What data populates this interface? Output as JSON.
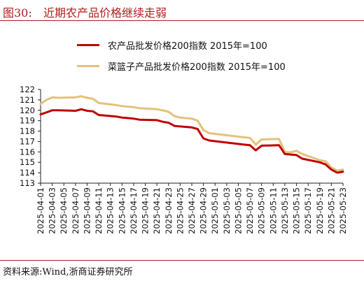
{
  "header": {
    "figure_label": "图30:",
    "title": "近期农产品价格继续走弱"
  },
  "source_note": "资料来源:Wind,浙商证券研究所",
  "colors": {
    "accent": "#b01c1c",
    "series_1": "#c00000",
    "series_2": "#e3c27a"
  },
  "chart_data": {
    "type": "line",
    "x": [
      "2025-04-01",
      "2025-04-02",
      "2025-04-03",
      "2025-04-04",
      "2025-04-07",
      "2025-04-08",
      "2025-04-09",
      "2025-04-10",
      "2025-04-11",
      "2025-04-14",
      "2025-04-15",
      "2025-04-16",
      "2025-04-17",
      "2025-04-18",
      "2025-04-21",
      "2025-04-22",
      "2025-04-23",
      "2025-04-24",
      "2025-04-25",
      "2025-04-27",
      "2025-04-28",
      "2025-04-29",
      "2025-04-30",
      "2025-05-06",
      "2025-05-07",
      "2025-05-08",
      "2025-05-09",
      "2025-05-12",
      "2025-05-13",
      "2025-05-14",
      "2025-05-15",
      "2025-05-16",
      "2025-05-19",
      "2025-05-20",
      "2025-05-21",
      "2025-05-22",
      "2025-05-23"
    ],
    "x_tick_labels": [
      "2025-04-01",
      "2025-04-03",
      "2025-04-05",
      "2025-04-07",
      "2025-04-09",
      "2025-04-11",
      "2025-04-13",
      "2025-04-15",
      "2025-04-17",
      "2025-04-19",
      "2025-04-21",
      "2025-04-23",
      "2025-04-25",
      "2025-04-27",
      "2025-04-29",
      "2025-05-01",
      "2025-05-03",
      "2025-05-05",
      "2025-05-07",
      "2025-05-09",
      "2025-05-11",
      "2025-05-13",
      "2025-05-15",
      "2025-05-17",
      "2025-05-19",
      "2025-05-21",
      "2025-05-23"
    ],
    "ylim": [
      113,
      122
    ],
    "y_ticks": [
      113,
      114,
      115,
      116,
      117,
      118,
      119,
      120,
      121,
      122
    ],
    "series": [
      {
        "name": "农产品批发价格200指数 2015年=100",
        "values": [
          119.6,
          119.8,
          120.0,
          120.0,
          119.95,
          120.1,
          119.95,
          119.9,
          119.55,
          119.4,
          119.3,
          119.25,
          119.2,
          119.1,
          119.05,
          118.9,
          118.8,
          118.5,
          118.45,
          118.35,
          118.2,
          117.3,
          117.1,
          116.7,
          116.65,
          116.15,
          116.6,
          116.65,
          115.8,
          115.75,
          115.7,
          115.35,
          115.0,
          114.8,
          114.3,
          114.0,
          114.1
        ]
      },
      {
        "name": "菜篮子产品批发价格200指数 2015年=100",
        "values": [
          120.6,
          121.0,
          121.25,
          121.2,
          121.25,
          121.35,
          121.2,
          121.1,
          120.7,
          120.5,
          120.4,
          120.35,
          120.3,
          120.2,
          120.1,
          120.0,
          119.85,
          119.45,
          119.3,
          119.2,
          119.0,
          118.1,
          117.8,
          117.4,
          117.35,
          116.7,
          117.2,
          117.25,
          116.0,
          115.95,
          116.1,
          115.8,
          115.2,
          115.1,
          114.5,
          114.2,
          114.3
        ]
      }
    ]
  }
}
